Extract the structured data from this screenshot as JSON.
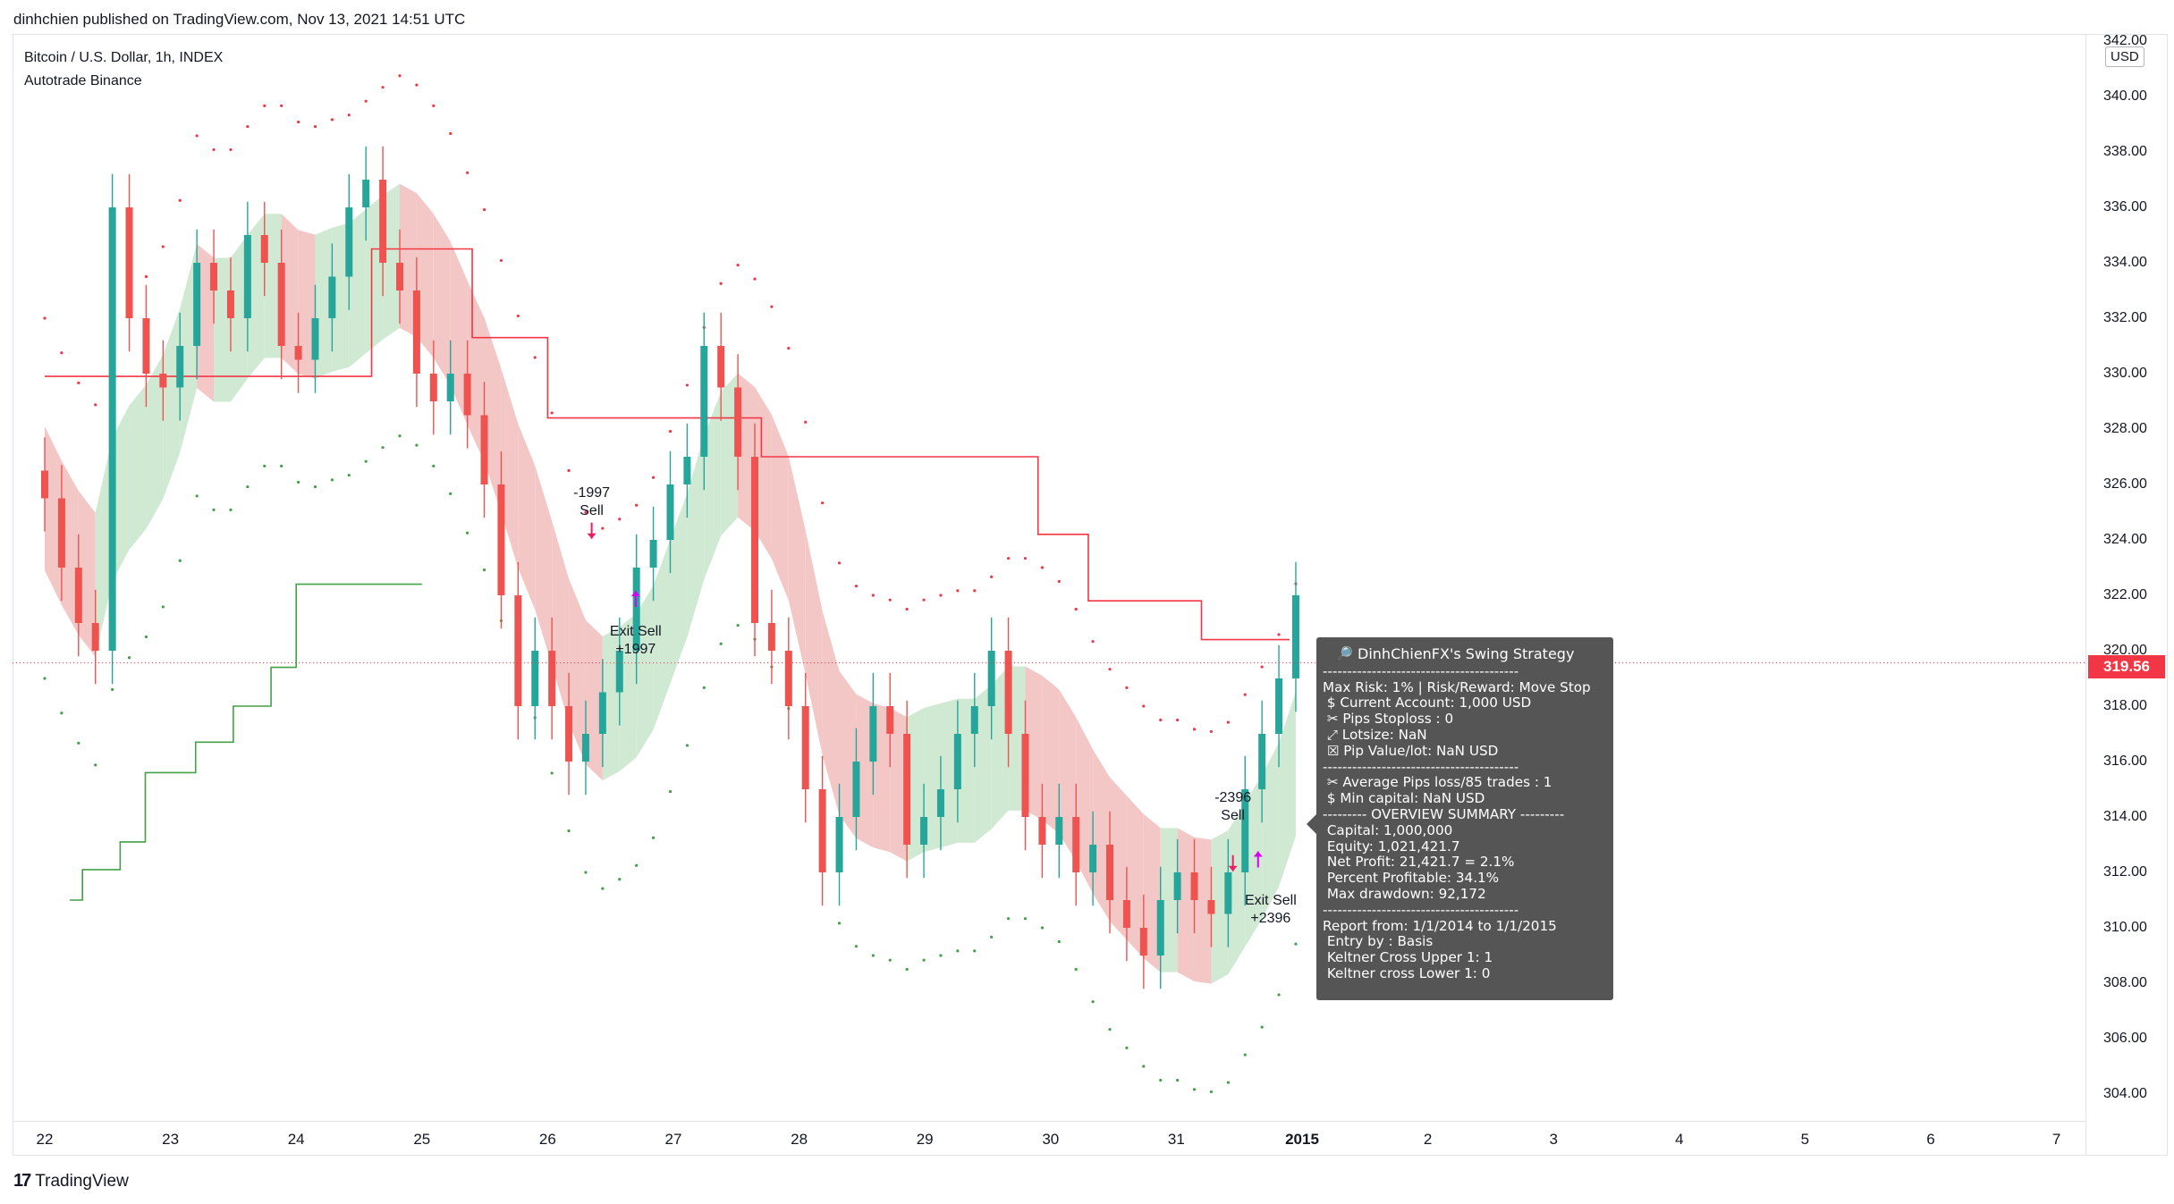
{
  "header": {
    "published": "dinhchien published on TradingView.com, Nov 13, 2021 14:51 UTC",
    "symbol": "Bitcoin / U.S. Dollar, 1h, INDEX",
    "indicator": "Autotrade Binance"
  },
  "currency": "USD",
  "current_price": "319.56",
  "footer": {
    "brand": "TradingView"
  },
  "annotations": [
    {
      "id": "sell1",
      "lines": [
        "-1997",
        "Sell"
      ]
    },
    {
      "id": "exit1",
      "lines": [
        "Exit Sell",
        "+1997"
      ]
    },
    {
      "id": "sell2",
      "lines": [
        "-2396",
        "Sell"
      ]
    },
    {
      "id": "exit2",
      "lines": [
        "Exit Sell",
        "+2396"
      ]
    }
  ],
  "tooltip": {
    "title": "DinhChienFX's Swing Strategy",
    "lines": [
      "----------------------------------------",
      "Max Risk: 1% | Risk/Reward: Move Stop",
      " $ Current Account: 1,000 USD",
      " ✂ Pips Stoploss : 0",
      " ⤢ Lotsize: NaN",
      " ☒ Pip Value/lot: NaN USD",
      "----------------------------------------",
      " ✂ Average Pips loss/85 trades : 1",
      " $ Min capital: NaN USD",
      "--------- OVERVIEW SUMMARY ---------",
      " Capital: 1,000,000",
      " Equity: 1,021,421.7",
      " Net Profit: 21,421.7 = 2.1%",
      " Percent Profitable: 34.1%",
      " Max drawdown: 92,172",
      "----------------------------------------",
      "Report from: 1/1/2014 to 1/1/2015",
      " Entry by : Basis",
      " Keltner Cross Upper 1: 1",
      " Keltner cross Lower 1: 0"
    ]
  },
  "chart_data": {
    "type": "candlestick",
    "y_ticks": [
      "304.00",
      "306.00",
      "308.00",
      "310.00",
      "312.00",
      "314.00",
      "316.00",
      "318.00",
      "320.00",
      "322.00",
      "324.00",
      "326.00",
      "328.00",
      "330.00",
      "332.00",
      "334.00",
      "336.00",
      "338.00",
      "340.00",
      "342.00"
    ],
    "x_ticks": [
      "22",
      "23",
      "24",
      "25",
      "26",
      "27",
      "28",
      "29",
      "30",
      "31",
      "2015",
      "2",
      "3",
      "4",
      "5",
      "6",
      "7"
    ],
    "ylim": [
      303,
      343
    ],
    "colors": {
      "up": "#26a69a",
      "down": "#ef5350",
      "band_down": "#f4c7c7",
      "band_up": "#cfe9d3",
      "upper_line": "#f23645",
      "lower_line": "#43a047",
      "marker_sell": "#e91e63",
      "marker_exit": "#d500f9"
    },
    "upper_channel_steps": [
      [
        22.0,
        329.9
      ],
      [
        22.17,
        329.9
      ],
      [
        24.6,
        329.9
      ],
      [
        24.6,
        334.5
      ],
      [
        25.4,
        334.5
      ],
      [
        25.4,
        331.3
      ],
      [
        26.0,
        331.3
      ],
      [
        26.0,
        328.4
      ],
      [
        27.7,
        328.4
      ],
      [
        27.7,
        327.0
      ],
      [
        28.9,
        327.0
      ],
      [
        29.9,
        327.0
      ],
      [
        29.9,
        324.2
      ],
      [
        30.3,
        324.2
      ],
      [
        30.3,
        321.8
      ],
      [
        30.5,
        321.8
      ],
      [
        31.2,
        321.8
      ],
      [
        31.2,
        320.4
      ],
      [
        31.9,
        320.4
      ]
    ],
    "lower_channel_steps": [
      [
        22.2,
        311.0
      ],
      [
        22.3,
        311.0
      ],
      [
        22.3,
        312.1
      ],
      [
        22.6,
        312.1
      ],
      [
        22.6,
        313.1
      ],
      [
        22.8,
        313.1
      ],
      [
        22.8,
        315.6
      ],
      [
        23.0,
        315.6
      ],
      [
        23.2,
        315.6
      ],
      [
        23.2,
        316.7
      ],
      [
        23.5,
        316.7
      ],
      [
        23.5,
        318.0
      ],
      [
        23.8,
        318.0
      ],
      [
        23.8,
        319.4
      ],
      [
        24.0,
        319.4
      ],
      [
        24.0,
        322.4
      ],
      [
        25.0,
        322.4
      ]
    ],
    "close_series": [
      325.5,
      323.0,
      321.0,
      320.0,
      336.0,
      332.0,
      330.0,
      329.5,
      331.0,
      334.0,
      333.0,
      332.0,
      335.0,
      334.0,
      331.0,
      330.5,
      332.0,
      333.5,
      336.0,
      337.0,
      334.0,
      333.0,
      330.0,
      329.0,
      330.0,
      328.5,
      326.0,
      322.0,
      318.0,
      320.0,
      318.0,
      316.0,
      317.0,
      318.5,
      320.0,
      323.0,
      324.0,
      326.0,
      327.0,
      331.0,
      329.5,
      327.0,
      321.0,
      320.0,
      318.0,
      315.0,
      312.0,
      314.0,
      316.0,
      318.0,
      317.0,
      313.0,
      314.0,
      315.0,
      317.0,
      318.0,
      320.0,
      317.0,
      314.0,
      313.0,
      314.0,
      312.0,
      313.0,
      311.0,
      310.0,
      309.0,
      311.0,
      312.0,
      311.0,
      310.5,
      312.0,
      315.0,
      317.0,
      319.0,
      322.0
    ]
  }
}
